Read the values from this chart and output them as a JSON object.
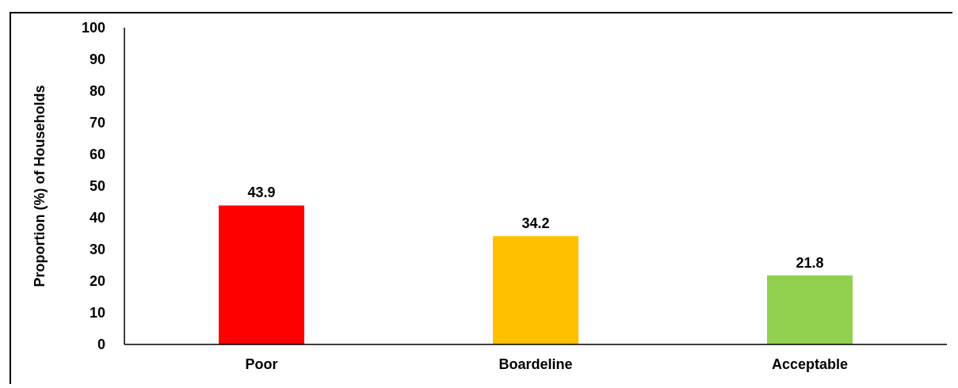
{
  "chart_data": {
    "type": "bar",
    "ylabel": "Proportion (%) of Households",
    "categories": [
      "Poor",
      "Boardeline",
      "Acceptable"
    ],
    "values": [
      43.9,
      34.2,
      21.8
    ],
    "colors": [
      "#ff0000",
      "#ffc000",
      "#92d050"
    ],
    "ylim": [
      0,
      100
    ],
    "yticks": [
      0,
      10,
      20,
      30,
      40,
      50,
      60,
      70,
      80,
      90,
      100
    ],
    "grid": false,
    "data_labels": true
  }
}
